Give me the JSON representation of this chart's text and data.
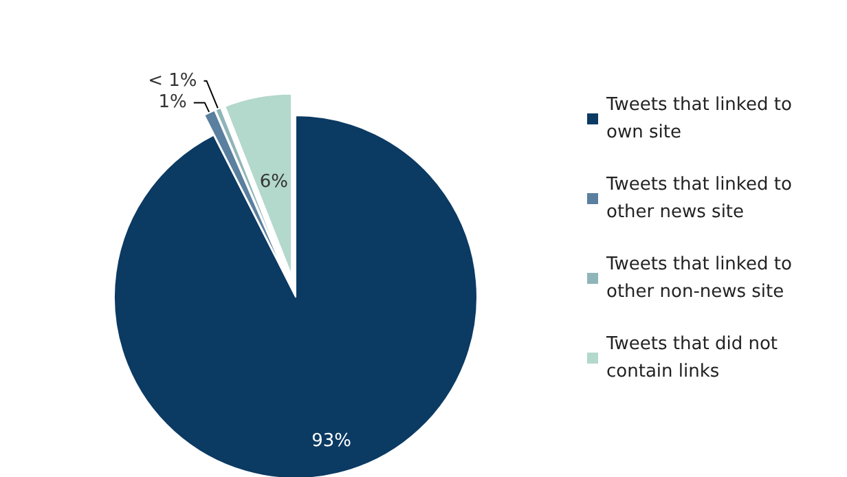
{
  "chart_data": {
    "type": "pie",
    "categories": [
      "Tweets that linked to own site",
      "Tweets that linked to other news site",
      "Tweets that linked to other non-news site",
      "Tweets that did not contain links"
    ],
    "values": [
      93,
      1,
      0.5,
      6
    ],
    "value_labels": [
      "93%",
      "1%",
      "< 1%",
      "6%"
    ],
    "colors": [
      "#0b3a63",
      "#5a7f9f",
      "#8fb5b8",
      "#b3d8cc"
    ],
    "legend": "right"
  }
}
